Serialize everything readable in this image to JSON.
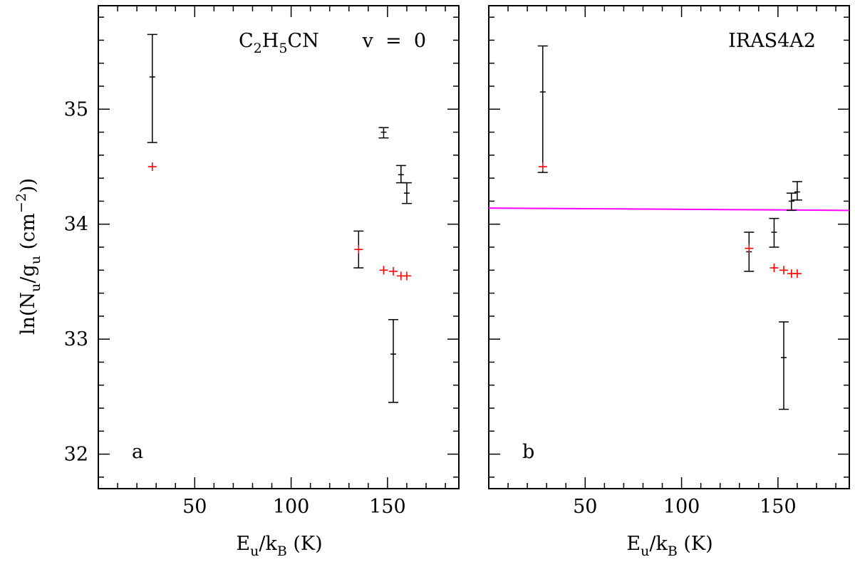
{
  "chart_data": [
    {
      "type": "scatter",
      "panel_label": "a",
      "annotation": {
        "molecule": "C2H5CN",
        "molecule_main": "C",
        "molecule_sub1": "2",
        "molecule_mid": "H",
        "molecule_sub2": "5",
        "molecule_end": "CN",
        "state": "v  =  0"
      },
      "xlabel": "Eu/kB (K)",
      "ylabel": "ln(Nu/gu (cm-2))",
      "xlim": [
        0,
        187
      ],
      "ylim": [
        31.7,
        35.9
      ],
      "x_ticks": [
        50,
        100,
        150
      ],
      "y_ticks": [
        32,
        33,
        34,
        35
      ],
      "show_y_tick_labels": true,
      "observed": [
        {
          "x": 28,
          "y": 35.28,
          "err_lo": 34.71,
          "err_hi": 35.65
        },
        {
          "x": 135,
          "y": 33.78,
          "err_lo": 33.62,
          "err_hi": 33.94
        },
        {
          "x": 148,
          "y": 34.8,
          "err_lo": 34.75,
          "err_hi": 34.84
        },
        {
          "x": 153,
          "y": 32.87,
          "err_lo": 32.45,
          "err_hi": 33.17
        },
        {
          "x": 157,
          "y": 34.43,
          "err_lo": 34.36,
          "err_hi": 34.51
        },
        {
          "x": 160,
          "y": 34.27,
          "err_lo": 34.18,
          "err_hi": 34.36
        }
      ],
      "model": [
        {
          "x": 28,
          "y": 34.5
        },
        {
          "x": 135,
          "y": 33.78
        },
        {
          "x": 148,
          "y": 33.6
        },
        {
          "x": 153,
          "y": 33.59
        },
        {
          "x": 157,
          "y": 33.55
        },
        {
          "x": 160,
          "y": 33.55
        }
      ],
      "fit_line": null,
      "colors": {
        "observed": "#000000",
        "model": "#ff0000",
        "fit": "#ff00ff"
      }
    },
    {
      "type": "scatter",
      "panel_label": "b",
      "annotation": {
        "source": "IRAS4A2"
      },
      "xlabel": "Eu/kB (K)",
      "xlim": [
        0,
        187
      ],
      "ylim": [
        31.7,
        35.9
      ],
      "x_ticks": [
        50,
        100,
        150
      ],
      "y_ticks": [
        32,
        33,
        34,
        35
      ],
      "show_y_tick_labels": false,
      "observed": [
        {
          "x": 28,
          "y": 35.15,
          "err_lo": 34.45,
          "err_hi": 35.55
        },
        {
          "x": 135,
          "y": 33.76,
          "err_lo": 33.59,
          "err_hi": 33.93
        },
        {
          "x": 148,
          "y": 33.93,
          "err_lo": 33.8,
          "err_hi": 34.05
        },
        {
          "x": 153,
          "y": 32.84,
          "err_lo": 32.39,
          "err_hi": 33.15
        },
        {
          "x": 157,
          "y": 34.2,
          "err_lo": 34.12,
          "err_hi": 34.27
        },
        {
          "x": 160,
          "y": 34.28,
          "err_lo": 34.21,
          "err_hi": 34.37
        }
      ],
      "model": [
        {
          "x": 28,
          "y": 34.5
        },
        {
          "x": 135,
          "y": 33.79
        },
        {
          "x": 148,
          "y": 33.62
        },
        {
          "x": 153,
          "y": 33.6
        },
        {
          "x": 157,
          "y": 33.57
        },
        {
          "x": 160,
          "y": 33.57
        }
      ],
      "fit_line": {
        "x": [
          0,
          187
        ],
        "y": [
          34.14,
          34.12
        ]
      },
      "colors": {
        "observed": "#000000",
        "model": "#ff0000",
        "fit": "#ff00ff"
      }
    }
  ],
  "labels": {
    "xlabel_main": "E",
    "xlabel_sub_u": "u",
    "xlabel_slash_k": "/k",
    "xlabel_sub_B": "B",
    "xlabel_unit": " (K)",
    "ylabel_main": "ln(N",
    "ylabel_sub_u": "u",
    "ylabel_slash_g": "/g",
    "ylabel_sub_u2": "u",
    "ylabel_unit": " (cm",
    "ylabel_sup": "−2",
    "ylabel_close": "))"
  }
}
